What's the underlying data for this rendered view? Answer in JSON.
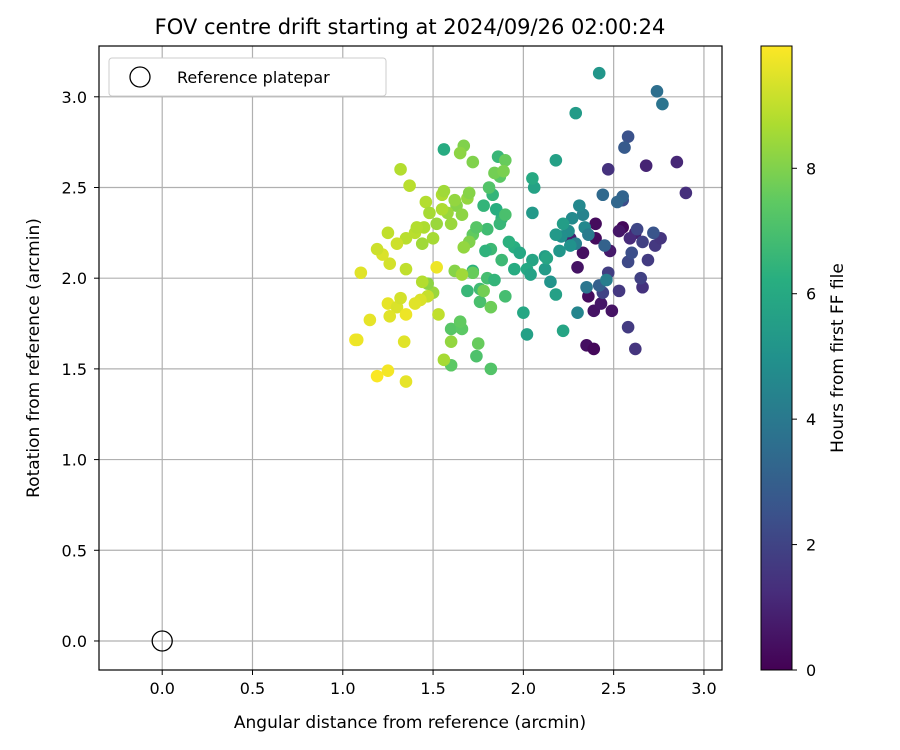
{
  "chart_data": {
    "type": "scatter",
    "title": "FOV centre drift starting at 2024/09/26 02:00:24",
    "xlabel": "Angular distance from reference (arcmin)",
    "ylabel": "Rotation from reference (arcmin)",
    "xlim": [
      -0.35,
      3.1
    ],
    "ylim": [
      -0.16,
      3.28
    ],
    "xticks": [
      0.0,
      0.5,
      1.0,
      1.5,
      2.0,
      2.5,
      3.0
    ],
    "xtick_labels": [
      "0.0",
      "0.5",
      "1.0",
      "1.5",
      "2.0",
      "2.5",
      "3.0"
    ],
    "yticks": [
      0.0,
      0.5,
      1.0,
      1.5,
      2.0,
      2.5,
      3.0
    ],
    "ytick_labels": [
      "0.0",
      "0.5",
      "1.0",
      "1.5",
      "2.0",
      "2.5",
      "3.0"
    ],
    "grid": true,
    "legend": {
      "position": "upper-left",
      "entries": [
        "Reference platepar"
      ]
    },
    "reference_point": {
      "label": "Reference platepar",
      "x": 0.0,
      "y": 0.0
    },
    "colorbar": {
      "label": "Hours from first FF file",
      "range": [
        0,
        9.95
      ],
      "ticks": [
        0,
        2,
        4,
        6,
        8
      ],
      "tick_labels": [
        "0",
        "2",
        "4",
        "6",
        "8"
      ],
      "colormap": "viridis"
    },
    "series": [
      {
        "points": [
          {
            "x": 2.55,
            "y": 2.28,
            "c": 0.2
          },
          {
            "x": 2.4,
            "y": 2.3,
            "c": 0.3
          },
          {
            "x": 2.33,
            "y": 2.14,
            "c": 0.4
          },
          {
            "x": 2.36,
            "y": 1.9,
            "c": 0.3
          },
          {
            "x": 2.39,
            "y": 1.82,
            "c": 0.5
          },
          {
            "x": 2.35,
            "y": 1.63,
            "c": 0.4
          },
          {
            "x": 2.39,
            "y": 1.61,
            "c": 0.2
          },
          {
            "x": 2.49,
            "y": 1.82,
            "c": 0.5
          },
          {
            "x": 2.43,
            "y": 1.86,
            "c": 0.6
          },
          {
            "x": 2.3,
            "y": 2.06,
            "c": 0.5
          },
          {
            "x": 2.4,
            "y": 2.22,
            "c": 0.3
          },
          {
            "x": 2.53,
            "y": 2.26,
            "c": 0.6
          },
          {
            "x": 2.26,
            "y": 2.22,
            "c": 0.8
          },
          {
            "x": 2.48,
            "y": 2.15,
            "c": 0.7
          },
          {
            "x": 2.62,
            "y": 2.25,
            "c": 0.9
          },
          {
            "x": 2.59,
            "y": 2.22,
            "c": 1.2
          },
          {
            "x": 2.47,
            "y": 2.6,
            "c": 1.4
          },
          {
            "x": 2.68,
            "y": 2.62,
            "c": 1.0
          },
          {
            "x": 2.85,
            "y": 2.64,
            "c": 1.1
          },
          {
            "x": 2.9,
            "y": 2.47,
            "c": 1.3
          },
          {
            "x": 2.62,
            "y": 1.61,
            "c": 1.5
          },
          {
            "x": 2.58,
            "y": 1.73,
            "c": 1.7
          },
          {
            "x": 2.53,
            "y": 1.93,
            "c": 1.6
          },
          {
            "x": 2.66,
            "y": 1.95,
            "c": 1.4
          },
          {
            "x": 2.47,
            "y": 2.03,
            "c": 1.8
          },
          {
            "x": 2.44,
            "y": 1.92,
            "c": 2.0
          },
          {
            "x": 2.65,
            "y": 2.0,
            "c": 1.9
          },
          {
            "x": 2.73,
            "y": 2.18,
            "c": 1.6
          },
          {
            "x": 2.76,
            "y": 2.22,
            "c": 1.5
          },
          {
            "x": 2.69,
            "y": 2.1,
            "c": 1.7
          },
          {
            "x": 2.58,
            "y": 2.09,
            "c": 2.2
          },
          {
            "x": 2.6,
            "y": 2.14,
            "c": 2.4
          },
          {
            "x": 2.63,
            "y": 2.27,
            "c": 2.1
          },
          {
            "x": 2.55,
            "y": 2.43,
            "c": 2.3
          },
          {
            "x": 2.58,
            "y": 2.78,
            "c": 2.5
          },
          {
            "x": 2.56,
            "y": 2.72,
            "c": 2.8
          },
          {
            "x": 2.72,
            "y": 2.25,
            "c": 2.6
          },
          {
            "x": 2.66,
            "y": 2.2,
            "c": 1.9
          },
          {
            "x": 2.42,
            "y": 1.96,
            "c": 3.0
          },
          {
            "x": 2.45,
            "y": 2.18,
            "c": 3.1
          },
          {
            "x": 2.44,
            "y": 2.46,
            "c": 3.4
          },
          {
            "x": 2.55,
            "y": 2.45,
            "c": 3.2
          },
          {
            "x": 2.74,
            "y": 3.03,
            "c": 3.6
          },
          {
            "x": 2.77,
            "y": 2.96,
            "c": 3.8
          },
          {
            "x": 2.35,
            "y": 1.95,
            "c": 3.9
          },
          {
            "x": 2.52,
            "y": 2.42,
            "c": 3.3
          },
          {
            "x": 2.46,
            "y": 1.99,
            "c": 4.2
          },
          {
            "x": 2.3,
            "y": 1.81,
            "c": 4.5
          },
          {
            "x": 2.29,
            "y": 2.19,
            "c": 4.3
          },
          {
            "x": 2.33,
            "y": 2.35,
            "c": 4.4
          },
          {
            "x": 2.31,
            "y": 2.4,
            "c": 4.6
          },
          {
            "x": 2.27,
            "y": 2.33,
            "c": 4.7
          },
          {
            "x": 2.25,
            "y": 2.26,
            "c": 4.8
          },
          {
            "x": 2.21,
            "y": 2.23,
            "c": 4.9
          },
          {
            "x": 2.34,
            "y": 2.28,
            "c": 4.6
          },
          {
            "x": 2.36,
            "y": 2.24,
            "c": 4.1
          },
          {
            "x": 2.42,
            "y": 3.13,
            "c": 5.2
          },
          {
            "x": 2.29,
            "y": 2.91,
            "c": 5.4
          },
          {
            "x": 2.18,
            "y": 2.65,
            "c": 5.6
          },
          {
            "x": 2.12,
            "y": 2.12,
            "c": 5.5
          },
          {
            "x": 2.05,
            "y": 2.1,
            "c": 5.8
          },
          {
            "x": 2.05,
            "y": 2.36,
            "c": 5.3
          },
          {
            "x": 2.02,
            "y": 2.05,
            "c": 5.9
          },
          {
            "x": 2.04,
            "y": 2.02,
            "c": 5.7
          },
          {
            "x": 2.15,
            "y": 1.98,
            "c": 5.1
          },
          {
            "x": 2.18,
            "y": 1.91,
            "c": 5.6
          },
          {
            "x": 2.12,
            "y": 2.05,
            "c": 5.4
          },
          {
            "x": 2.22,
            "y": 1.71,
            "c": 5.8
          },
          {
            "x": 2.02,
            "y": 1.69,
            "c": 5.6
          },
          {
            "x": 2.0,
            "y": 1.81,
            "c": 5.9
          },
          {
            "x": 2.2,
            "y": 2.15,
            "c": 5.2
          },
          {
            "x": 2.22,
            "y": 2.3,
            "c": 5.5
          },
          {
            "x": 2.06,
            "y": 2.5,
            "c": 5.7
          },
          {
            "x": 2.05,
            "y": 2.55,
            "c": 6.0
          },
          {
            "x": 2.18,
            "y": 2.24,
            "c": 5.3
          },
          {
            "x": 2.26,
            "y": 2.18,
            "c": 5.0
          },
          {
            "x": 2.13,
            "y": 2.11,
            "c": 5.8
          },
          {
            "x": 1.95,
            "y": 2.05,
            "c": 6.1
          },
          {
            "x": 1.95,
            "y": 2.17,
            "c": 6.2
          },
          {
            "x": 1.98,
            "y": 2.14,
            "c": 5.9
          },
          {
            "x": 1.92,
            "y": 2.2,
            "c": 6.3
          },
          {
            "x": 1.88,
            "y": 2.33,
            "c": 6.4
          },
          {
            "x": 1.85,
            "y": 2.38,
            "c": 6.2
          },
          {
            "x": 1.83,
            "y": 2.46,
            "c": 6.5
          },
          {
            "x": 1.86,
            "y": 2.67,
            "c": 6.6
          },
          {
            "x": 1.56,
            "y": 2.71,
            "c": 6.1
          },
          {
            "x": 1.8,
            "y": 2.27,
            "c": 6.8
          },
          {
            "x": 1.82,
            "y": 2.16,
            "c": 6.7
          },
          {
            "x": 1.79,
            "y": 2.15,
            "c": 6.4
          },
          {
            "x": 1.72,
            "y": 2.04,
            "c": 6.3
          },
          {
            "x": 1.8,
            "y": 2.0,
            "c": 6.9
          },
          {
            "x": 1.84,
            "y": 1.99,
            "c": 6.5
          },
          {
            "x": 1.76,
            "y": 1.94,
            "c": 6.8
          },
          {
            "x": 1.69,
            "y": 1.93,
            "c": 6.6
          },
          {
            "x": 1.76,
            "y": 1.87,
            "c": 7.0
          },
          {
            "x": 1.82,
            "y": 1.5,
            "c": 7.2
          },
          {
            "x": 1.74,
            "y": 1.57,
            "c": 7.1
          },
          {
            "x": 1.9,
            "y": 1.9,
            "c": 6.9
          },
          {
            "x": 1.88,
            "y": 2.1,
            "c": 6.7
          },
          {
            "x": 1.87,
            "y": 2.3,
            "c": 6.6
          },
          {
            "x": 1.9,
            "y": 2.35,
            "c": 7.0
          },
          {
            "x": 1.78,
            "y": 2.4,
            "c": 6.5
          },
          {
            "x": 1.6,
            "y": 1.72,
            "c": 7.3
          },
          {
            "x": 1.66,
            "y": 1.72,
            "c": 7.4
          },
          {
            "x": 1.65,
            "y": 1.76,
            "c": 7.5
          },
          {
            "x": 1.75,
            "y": 1.64,
            "c": 7.6
          },
          {
            "x": 1.6,
            "y": 1.52,
            "c": 7.4
          },
          {
            "x": 1.82,
            "y": 1.84,
            "c": 7.7
          },
          {
            "x": 1.78,
            "y": 1.93,
            "c": 7.8
          },
          {
            "x": 1.72,
            "y": 2.03,
            "c": 7.6
          },
          {
            "x": 1.72,
            "y": 2.24,
            "c": 7.5
          },
          {
            "x": 1.74,
            "y": 2.28,
            "c": 7.3
          },
          {
            "x": 1.87,
            "y": 2.56,
            "c": 7.4
          },
          {
            "x": 1.9,
            "y": 2.65,
            "c": 7.6
          },
          {
            "x": 1.84,
            "y": 2.58,
            "c": 7.8
          },
          {
            "x": 1.89,
            "y": 2.59,
            "c": 7.9
          },
          {
            "x": 1.81,
            "y": 2.5,
            "c": 7.2
          },
          {
            "x": 1.67,
            "y": 2.73,
            "c": 8.0
          },
          {
            "x": 1.65,
            "y": 2.69,
            "c": 8.2
          },
          {
            "x": 1.72,
            "y": 2.64,
            "c": 8.0
          },
          {
            "x": 1.69,
            "y": 2.44,
            "c": 8.3
          },
          {
            "x": 1.63,
            "y": 2.4,
            "c": 8.1
          },
          {
            "x": 1.58,
            "y": 2.36,
            "c": 8.4
          },
          {
            "x": 1.66,
            "y": 2.35,
            "c": 8.2
          },
          {
            "x": 1.7,
            "y": 2.2,
            "c": 8.0
          },
          {
            "x": 1.67,
            "y": 2.17,
            "c": 8.3
          },
          {
            "x": 1.62,
            "y": 2.04,
            "c": 8.1
          },
          {
            "x": 1.66,
            "y": 2.02,
            "c": 8.5
          },
          {
            "x": 1.6,
            "y": 1.65,
            "c": 8.3
          },
          {
            "x": 1.56,
            "y": 1.55,
            "c": 8.6
          },
          {
            "x": 1.5,
            "y": 1.92,
            "c": 8.4
          },
          {
            "x": 1.47,
            "y": 1.97,
            "c": 8.2
          },
          {
            "x": 1.44,
            "y": 2.19,
            "c": 8.5
          },
          {
            "x": 1.45,
            "y": 2.28,
            "c": 8.7
          },
          {
            "x": 1.5,
            "y": 2.22,
            "c": 8.6
          },
          {
            "x": 1.52,
            "y": 2.3,
            "c": 8.4
          },
          {
            "x": 1.55,
            "y": 2.46,
            "c": 8.7
          },
          {
            "x": 1.56,
            "y": 2.48,
            "c": 8.5
          },
          {
            "x": 1.46,
            "y": 2.42,
            "c": 8.8
          },
          {
            "x": 1.48,
            "y": 2.36,
            "c": 8.6
          },
          {
            "x": 1.4,
            "y": 2.25,
            "c": 8.9
          },
          {
            "x": 1.41,
            "y": 2.28,
            "c": 8.8
          },
          {
            "x": 1.35,
            "y": 2.05,
            "c": 9.0
          },
          {
            "x": 1.44,
            "y": 1.98,
            "c": 8.8
          },
          {
            "x": 1.47,
            "y": 1.9,
            "c": 9.1
          },
          {
            "x": 1.53,
            "y": 1.8,
            "c": 9.0
          },
          {
            "x": 1.35,
            "y": 2.22,
            "c": 8.9
          },
          {
            "x": 1.32,
            "y": 2.6,
            "c": 8.8
          },
          {
            "x": 1.37,
            "y": 2.51,
            "c": 8.9
          },
          {
            "x": 1.25,
            "y": 2.25,
            "c": 9.0
          },
          {
            "x": 1.3,
            "y": 2.19,
            "c": 9.2
          },
          {
            "x": 1.26,
            "y": 2.08,
            "c": 9.3
          },
          {
            "x": 1.22,
            "y": 2.13,
            "c": 9.4
          },
          {
            "x": 1.19,
            "y": 2.16,
            "c": 9.2
          },
          {
            "x": 1.1,
            "y": 2.03,
            "c": 9.5
          },
          {
            "x": 1.25,
            "y": 1.86,
            "c": 9.6
          },
          {
            "x": 1.3,
            "y": 1.84,
            "c": 9.4
          },
          {
            "x": 1.32,
            "y": 1.89,
            "c": 9.3
          },
          {
            "x": 1.26,
            "y": 1.79,
            "c": 9.5
          },
          {
            "x": 1.35,
            "y": 1.8,
            "c": 9.7
          },
          {
            "x": 1.15,
            "y": 1.77,
            "c": 9.6
          },
          {
            "x": 1.07,
            "y": 1.66,
            "c": 9.8
          },
          {
            "x": 1.08,
            "y": 1.66,
            "c": 9.7
          },
          {
            "x": 1.34,
            "y": 1.65,
            "c": 9.5
          },
          {
            "x": 1.25,
            "y": 1.49,
            "c": 9.8
          },
          {
            "x": 1.19,
            "y": 1.46,
            "c": 9.9
          },
          {
            "x": 1.35,
            "y": 1.43,
            "c": 9.6
          },
          {
            "x": 1.43,
            "y": 1.88,
            "c": 9.4
          },
          {
            "x": 1.52,
            "y": 2.06,
            "c": 9.7
          },
          {
            "x": 1.4,
            "y": 1.86,
            "c": 9.5
          },
          {
            "x": 1.55,
            "y": 2.38,
            "c": 8.7
          },
          {
            "x": 1.6,
            "y": 2.3,
            "c": 8.4
          },
          {
            "x": 1.62,
            "y": 2.43,
            "c": 8.3
          },
          {
            "x": 1.7,
            "y": 2.47,
            "c": 8.1
          }
        ]
      }
    ]
  }
}
